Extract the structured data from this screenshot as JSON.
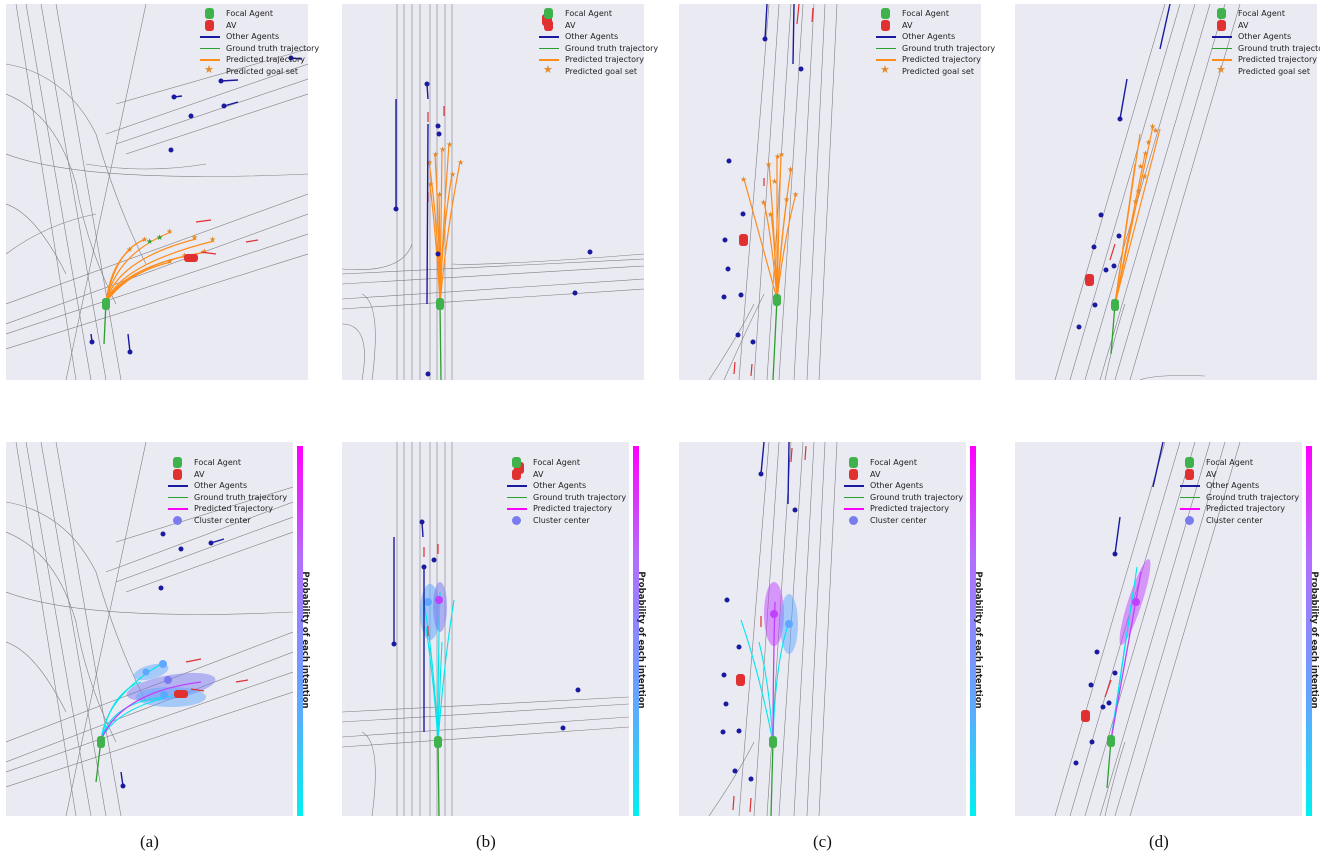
{
  "legend_top": {
    "items": [
      {
        "label": "Focal Agent",
        "kind": "car",
        "color": "#3fb24b"
      },
      {
        "label": "AV",
        "kind": "car",
        "color": "#e03030"
      },
      {
        "label": "Other Agents",
        "kind": "line",
        "color": "#1a1aa0"
      },
      {
        "label": "Ground truth trajectory",
        "kind": "line",
        "color": "#2ca02c"
      },
      {
        "label": "Predicted trajectory",
        "kind": "line",
        "color": "#ff8c1a"
      },
      {
        "label": "Predicted goal set",
        "kind": "star",
        "color": "#e38a2b"
      }
    ]
  },
  "legend_bottom": {
    "items": [
      {
        "label": "Focal Agent",
        "kind": "car",
        "color": "#3fb24b"
      },
      {
        "label": "AV",
        "kind": "car",
        "color": "#e03030"
      },
      {
        "label": "Other Agents",
        "kind": "line",
        "color": "#1a1aa0"
      },
      {
        "label": "Ground truth trajectory",
        "kind": "line",
        "color": "#2ca02c"
      },
      {
        "label": "Predicted trajectory",
        "kind": "line",
        "color": "#ff00ff"
      },
      {
        "label": "Cluster center",
        "kind": "dot",
        "color": "#7b7bf0"
      }
    ]
  },
  "colorbar_label": "Probability of each intention",
  "captions": [
    "(a)",
    "(b)",
    "(c)",
    "(d)"
  ]
}
